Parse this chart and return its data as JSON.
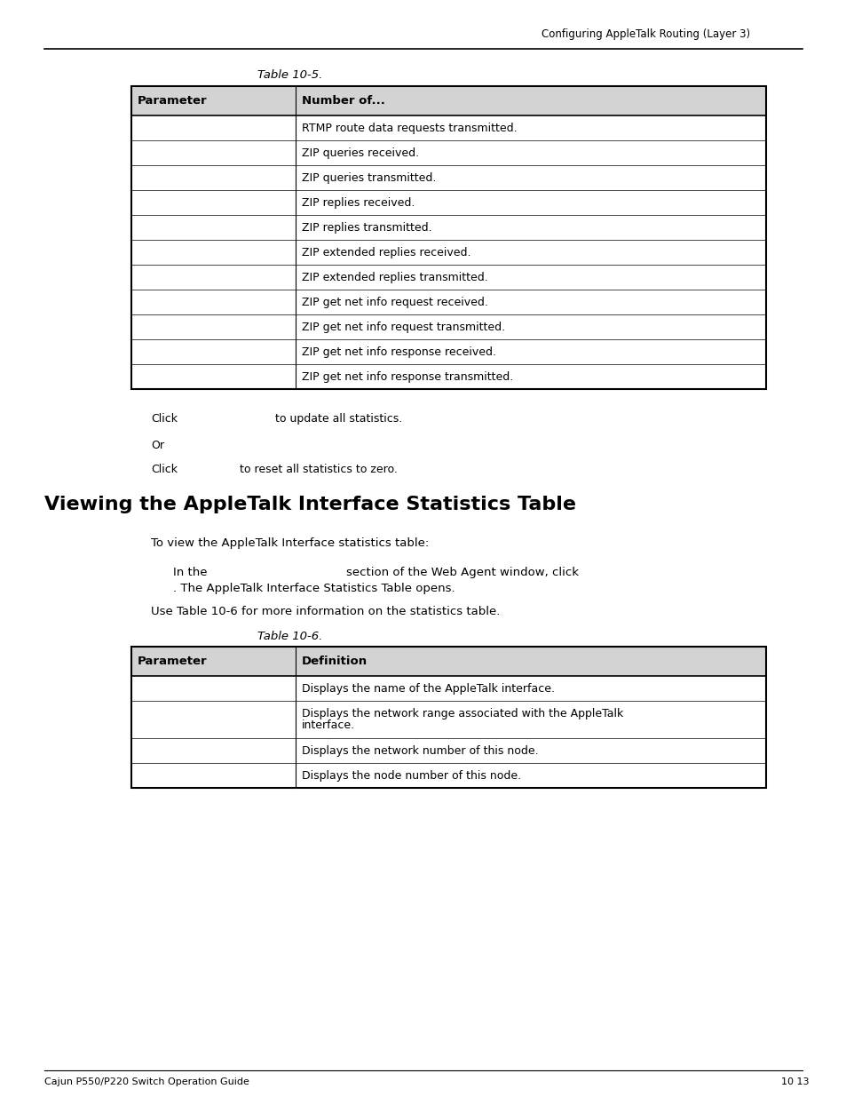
{
  "page_header_right": "Configuring AppleTalk Routing (Layer 3)",
  "table1_title": "Table 10-5.",
  "table1_headers": [
    "Parameter",
    "Number of..."
  ],
  "table1_rows": [
    [
      "",
      "RTMP route data requests transmitted."
    ],
    [
      "",
      "ZIP queries received."
    ],
    [
      "",
      "ZIP queries transmitted."
    ],
    [
      "",
      "ZIP replies received."
    ],
    [
      "",
      "ZIP replies transmitted."
    ],
    [
      "",
      "ZIP extended replies received."
    ],
    [
      "",
      "ZIP extended replies transmitted."
    ],
    [
      "",
      "ZIP get net info request received."
    ],
    [
      "",
      "ZIP get net info request transmitted."
    ],
    [
      "",
      "ZIP get net info response received."
    ],
    [
      "",
      "ZIP get net info response transmitted."
    ]
  ],
  "text_click1_a": "Click",
  "text_click1_b": "to update all statistics.",
  "text_or": "Or",
  "text_click2_a": "Click",
  "text_click2_b": "to reset all statistics to zero.",
  "section_title": "Viewing the AppleTalk Interface Statistics Table",
  "para1": "To view the AppleTalk Interface statistics table:",
  "para2_line1a": "In the",
  "para2_line1b": "section of the Web Agent window, click",
  "para2_line2": ". The AppleTalk Interface Statistics Table opens.",
  "para3": "Use Table 10-6 for more information on the statistics table.",
  "table2_title": "Table 10-6.",
  "table2_headers": [
    "Parameter",
    "Definition"
  ],
  "table2_rows": [
    [
      "",
      "Displays the name of the AppleTalk interface."
    ],
    [
      "",
      "Displays the network range associated with the AppleTalk\ninterface."
    ],
    [
      "",
      "Displays the network number of this node."
    ],
    [
      "",
      "Displays the node number of this node."
    ]
  ],
  "footer_left": "Cajun P550/P220 Switch Operation Guide",
  "footer_right": "10 13",
  "bg_color": "#ffffff",
  "header_bg": "#d3d3d3",
  "table_border": "#000000",
  "text_color": "#000000"
}
